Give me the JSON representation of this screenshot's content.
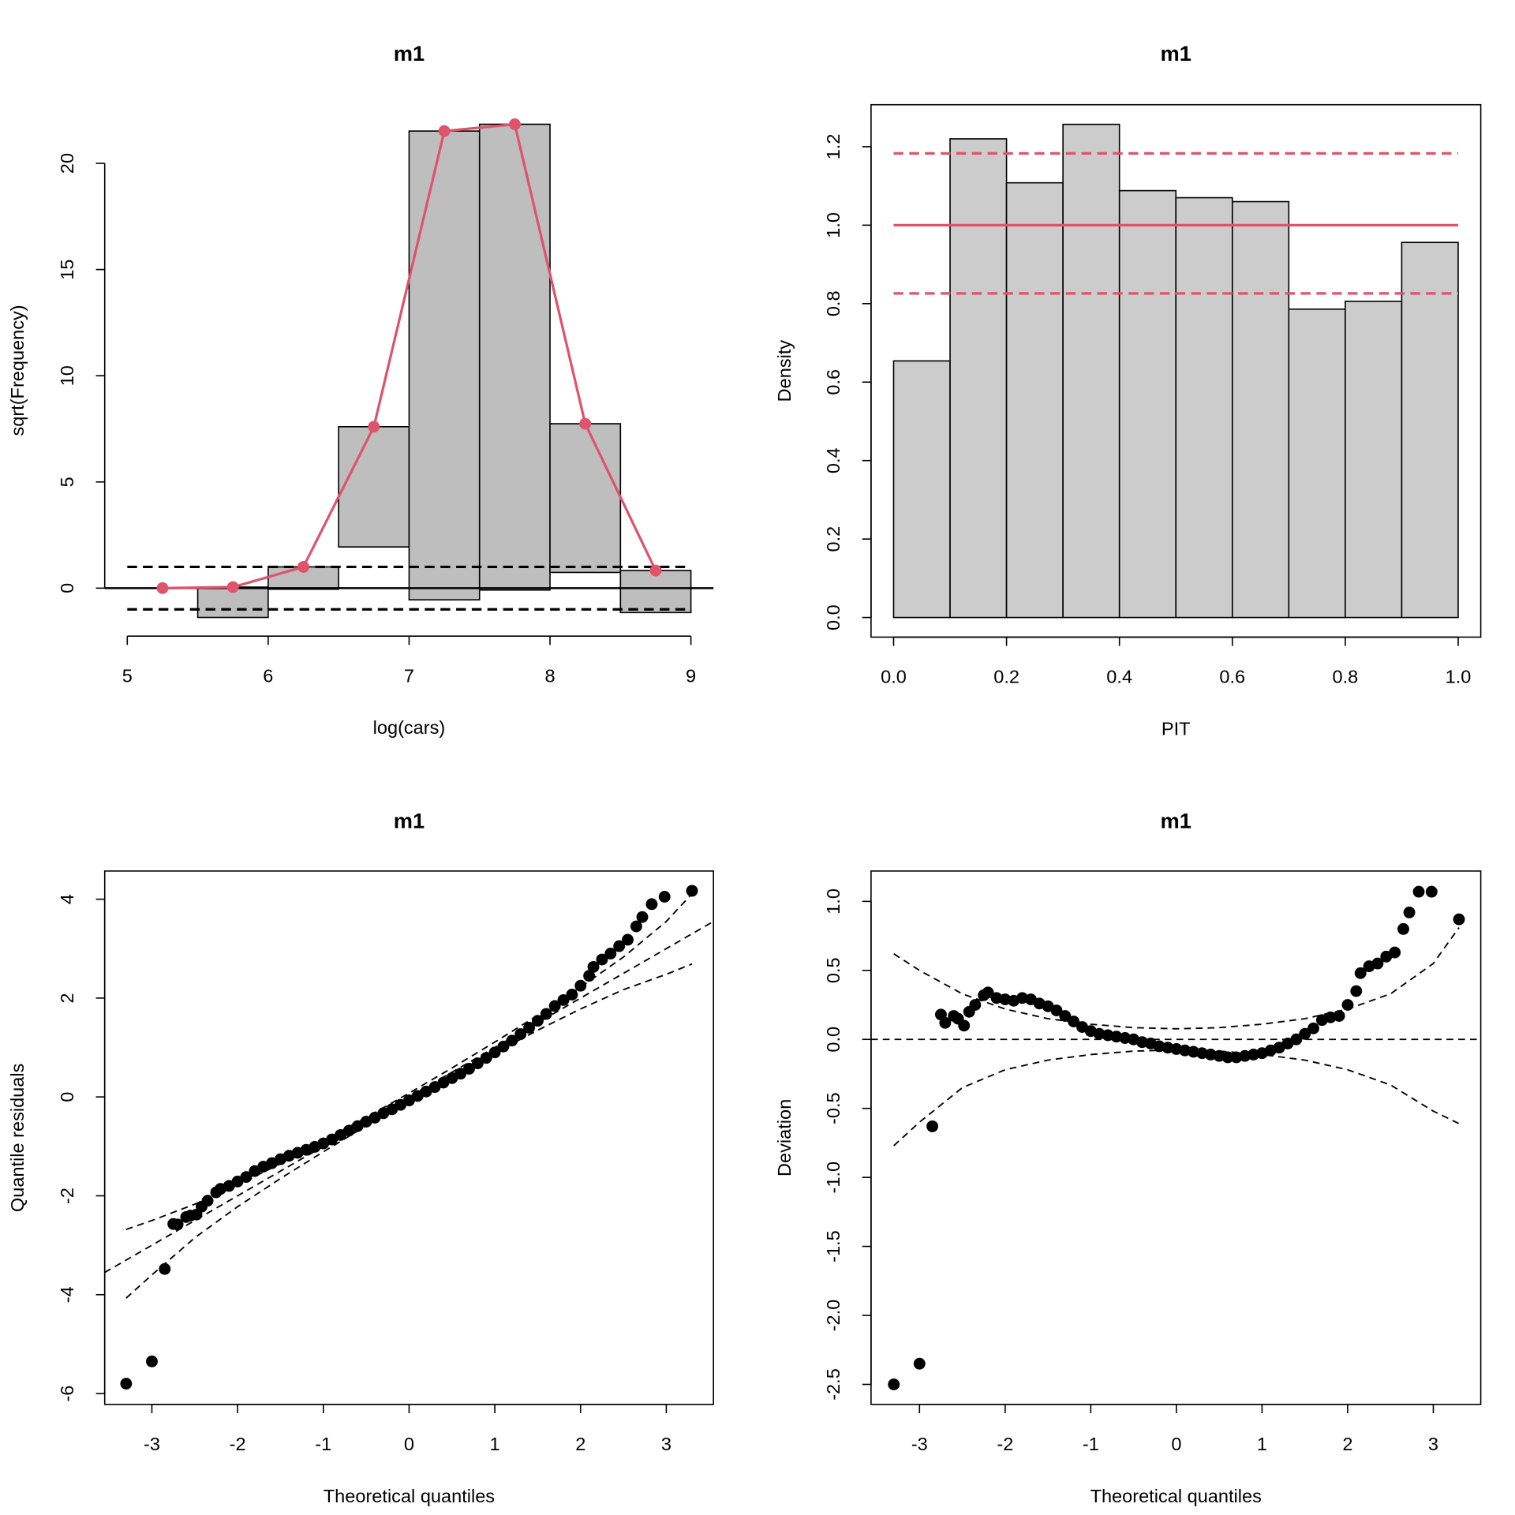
{
  "chart_data": [
    {
      "type": "rootogram",
      "title": "m1",
      "x_label": "log(cars)",
      "y_label": "sqrt(Frequency)",
      "bins": [
        5,
        5.5,
        6,
        6.5,
        7,
        7.5,
        8,
        8.5,
        9
      ],
      "x": [
        5.25,
        5.75,
        6.25,
        6.75,
        7.25,
        7.75,
        8.25,
        8.75
      ],
      "expected": [
        0,
        0.05,
        1.0,
        7.6,
        21.52,
        21.84,
        7.74,
        0.83
      ],
      "observed": [
        0,
        1.43,
        1.05,
        5.66,
        22.07,
        21.93,
        7.0,
        1.98
      ],
      "expected_color": "#df536b",
      "bar_color": "#bebebe",
      "reference_lines": [
        -1,
        1
      ],
      "xlim": [
        4.84,
        9.16
      ],
      "ylim": [
        -2.26,
        22.76
      ],
      "xticks": [
        5,
        6,
        7,
        8,
        9
      ],
      "yticks": [
        0,
        5,
        10,
        15,
        20
      ]
    },
    {
      "type": "histogram",
      "title": "m1",
      "x_label": "PIT",
      "y_label": "Density",
      "bins": [
        0,
        0.1,
        0.2,
        0.3,
        0.4,
        0.5,
        0.6,
        0.7,
        0.8,
        0.9,
        1.0
      ],
      "values": [
        0.654,
        1.22,
        1.108,
        1.257,
        1.088,
        1.07,
        1.06,
        0.786,
        0.806,
        0.956
      ],
      "color": "#cccccc",
      "reference_lines": [
        {
          "value": 1.0,
          "style": "solid"
        },
        {
          "value": 1.183,
          "style": "dashed"
        },
        {
          "value": 0.826,
          "style": "dashed"
        }
      ],
      "line_color": "#df536b",
      "xlim": [
        -0.04,
        1.04
      ],
      "ylim": [
        -0.05,
        1.307
      ],
      "xticks": [
        {
          "value": 0,
          "label": "0.0"
        },
        {
          "value": 0.2,
          "label": "0.2"
        },
        {
          "value": 0.4,
          "label": "0.4"
        },
        {
          "value": 0.6,
          "label": "0.6"
        },
        {
          "value": 0.8,
          "label": "0.8"
        },
        {
          "value": 1,
          "label": "1.0"
        }
      ],
      "yticks": [
        {
          "value": 0,
          "label": "0.0"
        },
        {
          "value": 0.2,
          "label": "0.2"
        },
        {
          "value": 0.4,
          "label": "0.4"
        },
        {
          "value": 0.6,
          "label": "0.6"
        },
        {
          "value": 0.8,
          "label": "0.8"
        },
        {
          "value": 1,
          "label": "1.0"
        },
        {
          "value": 1.2,
          "label": "1.2"
        }
      ]
    },
    {
      "type": "scatter",
      "title": "m1",
      "x_label": "Theoretical quantiles",
      "y_label": "Quantile residuals",
      "x": [
        -3.3,
        -3.0,
        -2.85,
        -2.75,
        -2.7,
        -2.6,
        -2.55,
        -2.48,
        -2.42,
        -2.35,
        -2.25,
        -2.2,
        -2.1,
        -2.0,
        -1.9,
        -1.8,
        -1.7,
        -1.6,
        -1.5,
        -1.4,
        -1.3,
        -1.2,
        -1.1,
        -1.0,
        -0.9,
        -0.8,
        -0.7,
        -0.6,
        -0.5,
        -0.4,
        -0.3,
        -0.2,
        -0.1,
        0,
        0.1,
        0.2,
        0.3,
        0.4,
        0.5,
        0.6,
        0.7,
        0.8,
        0.9,
        1.0,
        1.1,
        1.2,
        1.3,
        1.4,
        1.5,
        1.6,
        1.7,
        1.8,
        1.9,
        2.0,
        2.1,
        2.15,
        2.25,
        2.35,
        2.45,
        2.55,
        2.65,
        2.72,
        2.83,
        2.98,
        3.3
      ],
      "values": [
        -5.8,
        -5.35,
        -3.48,
        -2.57,
        -2.58,
        -2.43,
        -2.4,
        -2.38,
        -2.22,
        -2.1,
        -1.93,
        -1.86,
        -1.8,
        -1.71,
        -1.62,
        -1.5,
        -1.41,
        -1.34,
        -1.26,
        -1.19,
        -1.13,
        -1.07,
        -1.01,
        -0.94,
        -0.86,
        -0.77,
        -0.68,
        -0.59,
        -0.5,
        -0.42,
        -0.33,
        -0.25,
        -0.16,
        -0.07,
        0.02,
        0.11,
        0.2,
        0.29,
        0.38,
        0.47,
        0.57,
        0.68,
        0.79,
        0.9,
        1.02,
        1.14,
        1.27,
        1.4,
        1.54,
        1.68,
        1.84,
        1.96,
        2.07,
        2.25,
        2.45,
        2.63,
        2.78,
        2.9,
        3.05,
        3.18,
        3.45,
        3.64,
        3.9,
        4.05,
        4.17
      ],
      "color": "#000000",
      "reference_line": {
        "x": [
          -3.55,
          3.55
        ],
        "values": [
          -3.55,
          3.55
        ]
      },
      "band_x": [
        -3.3,
        -3,
        -2.5,
        -2,
        -1.5,
        -1,
        -0.5,
        0,
        0.5,
        1,
        1.5,
        2,
        2.5,
        3,
        3.3
      ],
      "bands": [
        [
          -2.68,
          -2.5,
          -2.17,
          -1.78,
          -1.35,
          -0.89,
          -0.415,
          0.077,
          0.585,
          1.11,
          1.65,
          2.22,
          2.83,
          3.55,
          4.11
        ],
        [
          -4.07,
          -3.6,
          -2.85,
          -2.22,
          -1.65,
          -1.11,
          -0.585,
          -0.077,
          0.415,
          0.89,
          1.35,
          1.78,
          2.17,
          2.48,
          2.69
        ]
      ],
      "xlim": [
        -3.55,
        3.55
      ],
      "ylim": [
        -6.22,
        4.57
      ],
      "xticks": [
        -3,
        -2,
        -1,
        0,
        1,
        2,
        3
      ],
      "yticks": [
        -6,
        -4,
        -2,
        0,
        2,
        4
      ]
    },
    {
      "type": "scatter",
      "title": "m1",
      "x_label": "Theoretical quantiles",
      "y_label": "Deviation",
      "x": [
        -3.3,
        -3.0,
        -2.85,
        -2.75,
        -2.7,
        -2.6,
        -2.55,
        -2.48,
        -2.42,
        -2.35,
        -2.25,
        -2.2,
        -2.1,
        -2.0,
        -1.9,
        -1.8,
        -1.7,
        -1.6,
        -1.5,
        -1.4,
        -1.3,
        -1.2,
        -1.1,
        -1.0,
        -0.9,
        -0.8,
        -0.7,
        -0.6,
        -0.5,
        -0.4,
        -0.3,
        -0.2,
        -0.1,
        0,
        0.1,
        0.2,
        0.3,
        0.4,
        0.5,
        0.6,
        0.7,
        0.8,
        0.9,
        1.0,
        1.1,
        1.2,
        1.3,
        1.4,
        1.5,
        1.6,
        1.7,
        1.8,
        1.9,
        2.0,
        2.1,
        2.15,
        2.25,
        2.35,
        2.45,
        2.55,
        2.65,
        2.72,
        2.83,
        2.98,
        3.3
      ],
      "values": [
        -2.5,
        -2.35,
        -0.63,
        0.18,
        0.12,
        0.17,
        0.15,
        0.1,
        0.2,
        0.25,
        0.32,
        0.34,
        0.3,
        0.29,
        0.28,
        0.3,
        0.29,
        0.26,
        0.24,
        0.21,
        0.17,
        0.13,
        0.09,
        0.06,
        0.04,
        0.03,
        0.02,
        0.01,
        0.0,
        -0.02,
        -0.03,
        -0.05,
        -0.06,
        -0.07,
        -0.08,
        -0.09,
        -0.1,
        -0.11,
        -0.12,
        -0.13,
        -0.13,
        -0.12,
        -0.11,
        -0.1,
        -0.08,
        -0.06,
        -0.03,
        0.0,
        0.04,
        0.08,
        0.14,
        0.16,
        0.17,
        0.25,
        0.35,
        0.48,
        0.53,
        0.55,
        0.6,
        0.63,
        0.8,
        0.92,
        1.07,
        1.07,
        0.87
      ],
      "color": "#000000",
      "reference_lines": [
        0
      ],
      "band_x": [
        -3.3,
        -3,
        -2.5,
        -2,
        -1.5,
        -1,
        -0.5,
        0,
        0.5,
        1,
        1.5,
        2,
        2.5,
        3,
        3.3
      ],
      "bands": [
        [
          0.62,
          0.5,
          0.33,
          0.22,
          0.15,
          0.11,
          0.085,
          0.077,
          0.085,
          0.11,
          0.15,
          0.22,
          0.33,
          0.55,
          0.81
        ],
        [
          -0.77,
          -0.6,
          -0.35,
          -0.22,
          -0.15,
          -0.11,
          -0.085,
          -0.077,
          -0.085,
          -0.11,
          -0.15,
          -0.22,
          -0.33,
          -0.52,
          -0.61
        ]
      ],
      "xlim": [
        -3.566,
        3.554
      ],
      "ylim": [
        -2.645,
        1.22
      ],
      "xticks": [
        -3,
        -2,
        -1,
        0,
        1,
        2,
        3
      ],
      "yticks": [
        {
          "value": -2.5,
          "label": "-2.5"
        },
        {
          "value": -2,
          "label": "-2.0"
        },
        {
          "value": -1.5,
          "label": "-1.5"
        },
        {
          "value": -1,
          "label": "-1.0"
        },
        {
          "value": -0.5,
          "label": "-0.5"
        },
        {
          "value": 0,
          "label": "0.0"
        },
        {
          "value": 0.5,
          "label": "0.5"
        },
        {
          "value": 1,
          "label": "1.0"
        }
      ]
    }
  ]
}
